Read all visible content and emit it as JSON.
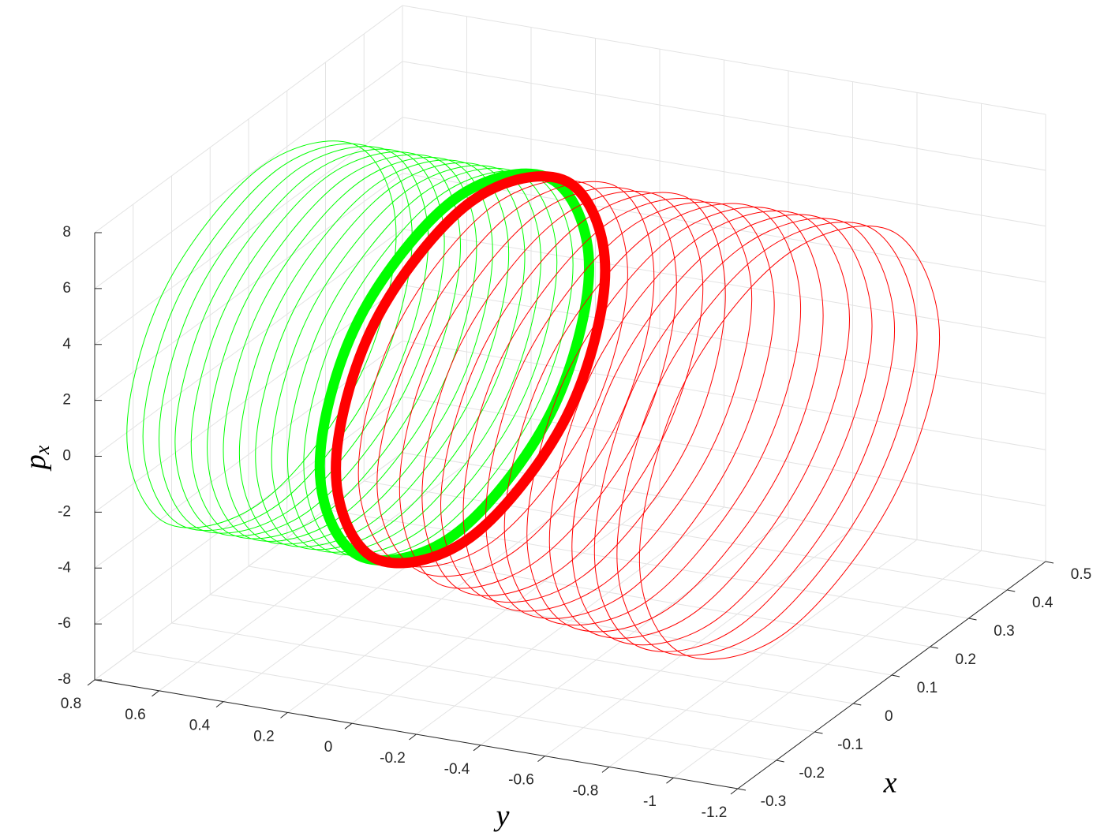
{
  "chart_data": {
    "type": "line3d",
    "xlabel": "x",
    "ylabel": "y",
    "zlabel": "p",
    "zlabel_subscript": "x",
    "xlim": [
      -0.3,
      0.5
    ],
    "xticks": [
      -0.3,
      -0.2,
      -0.1,
      0,
      0.1,
      0.2,
      0.3,
      0.4,
      0.5
    ],
    "ylim": [
      -1.2,
      0.8
    ],
    "ydir": "reverse",
    "yticks": [
      0.8,
      0.6,
      0.4,
      0.2,
      0,
      -0.2,
      -0.4,
      -0.6,
      -0.8,
      -1,
      -1.2
    ],
    "zlim": [
      -8,
      8
    ],
    "zticks": [
      -8,
      -6,
      -4,
      -2,
      0,
      2,
      4,
      6,
      8
    ],
    "grid": true,
    "series": [
      {
        "color": "#00ff00",
        "loops": [
          {
            "y": 0.7,
            "x": [
              0.4,
              0.3,
              0.05,
              -0.2,
              -0.3,
              -0.2,
              0.05,
              0.3
            ],
            "z": [
              1,
              5.2,
              7,
              5.2,
              1,
              -3.2,
              -5,
              -3.2
            ]
          },
          {
            "y": 0.65,
            "x": [
              0.4,
              0.3,
              0.05,
              -0.2,
              -0.3,
              -0.2,
              0.05,
              0.3
            ],
            "z": [
              1,
              5.2,
              7,
              5.2,
              1,
              -3.2,
              -5,
              -3.2
            ]
          },
          {
            "y": 0.6,
            "x": [
              0.4,
              0.3,
              0.05,
              -0.2,
              -0.3,
              -0.2,
              0.05,
              0.3
            ],
            "z": [
              1,
              5.2,
              7,
              5.2,
              1,
              -3.2,
              -5,
              -3.2
            ]
          },
          {
            "y": 0.55,
            "x": [
              0.4,
              0.3,
              0.05,
              -0.2,
              -0.3,
              -0.2,
              0.05,
              0.3
            ],
            "z": [
              1,
              5.2,
              7,
              5.2,
              1,
              -3.2,
              -5,
              -3.2
            ]
          },
          {
            "y": 0.5,
            "x": [
              0.4,
              0.3,
              0.05,
              -0.2,
              -0.3,
              -0.2,
              0.05,
              0.3
            ],
            "z": [
              1,
              5.2,
              7,
              5.2,
              1,
              -3.2,
              -5,
              -3.2
            ]
          },
          {
            "y": 0.45,
            "x": [
              0.4,
              0.3,
              0.05,
              -0.2,
              -0.3,
              -0.2,
              0.05,
              0.3
            ],
            "z": [
              1,
              5.2,
              7,
              5.2,
              1,
              -3.2,
              -5,
              -3.2
            ]
          },
          {
            "y": 0.4,
            "x": [
              0.4,
              0.3,
              0.05,
              -0.2,
              -0.3,
              -0.2,
              0.05,
              0.3
            ],
            "z": [
              1,
              5.2,
              7,
              5.2,
              1,
              -3.2,
              -5,
              -3.2
            ]
          },
          {
            "y": 0.35,
            "x": [
              0.4,
              0.3,
              0.05,
              -0.2,
              -0.3,
              -0.2,
              0.05,
              0.3
            ],
            "z": [
              1,
              5.2,
              7,
              5.2,
              1,
              -3.2,
              -5,
              -3.2
            ]
          },
          {
            "y": 0.3,
            "x": [
              0.4,
              0.3,
              0.05,
              -0.2,
              -0.3,
              -0.2,
              0.05,
              0.3
            ],
            "z": [
              1,
              5.2,
              7,
              5.2,
              1,
              -3.2,
              -5,
              -3.2
            ]
          },
          {
            "y": 0.25,
            "x": [
              0.4,
              0.3,
              0.05,
              -0.2,
              -0.3,
              -0.2,
              0.05,
              0.3
            ],
            "z": [
              1,
              5.2,
              7,
              5.2,
              1,
              -3.2,
              -5,
              -3.2
            ]
          },
          {
            "y": 0.2,
            "x": [
              0.4,
              0.3,
              0.05,
              -0.2,
              -0.3,
              -0.2,
              0.05,
              0.3
            ],
            "z": [
              1,
              5.2,
              7,
              5.2,
              1,
              -3.2,
              -5,
              -3.2
            ]
          },
          {
            "y": 0.15,
            "x": [
              0.4,
              0.3,
              0.05,
              -0.2,
              -0.3,
              -0.2,
              0.05,
              0.3
            ],
            "z": [
              1,
              5.2,
              7,
              5.2,
              1,
              -3.2,
              -5,
              -3.2
            ]
          },
          {
            "y": 0.1,
            "x": [
              0.4,
              0.3,
              0.05,
              -0.2,
              -0.3,
              -0.2,
              0.05,
              0.3
            ],
            "z": [
              1,
              5.2,
              7,
              5.2,
              1,
              -3.2,
              -5,
              -3.2
            ]
          }
        ]
      },
      {
        "color": "#ff0000",
        "loops": [
          {
            "y": 0.05,
            "x": [
              0.4,
              0.3,
              0.05,
              -0.2,
              -0.3,
              -0.2,
              0.05,
              0.3
            ],
            "z": [
              1,
              5.2,
              7,
              5.2,
              1,
              -3.2,
              -5,
              -3.2
            ]
          },
          {
            "y": -0.02,
            "x": [
              0.4,
              0.3,
              0.05,
              -0.2,
              -0.3,
              -0.2,
              0.05,
              0.3
            ],
            "z": [
              1,
              5.2,
              7,
              5.2,
              1,
              -3.2,
              -5,
              -3.2
            ]
          },
          {
            "y": -0.09,
            "x": [
              0.41,
              0.31,
              0.05,
              -0.2,
              -0.31,
              -0.2,
              0.05,
              0.31
            ],
            "z": [
              0.9,
              5.2,
              7,
              5.2,
              0.9,
              -3.4,
              -5.2,
              -3.4
            ]
          },
          {
            "y": -0.16,
            "x": [
              0.41,
              0.31,
              0.05,
              -0.21,
              -0.31,
              -0.21,
              0.05,
              0.31
            ],
            "z": [
              0.8,
              5.1,
              7,
              5.1,
              0.8,
              -3.6,
              -5.4,
              -3.6
            ]
          },
          {
            "y": -0.23,
            "x": [
              0.42,
              0.31,
              0.05,
              -0.21,
              -0.31,
              -0.21,
              0.05,
              0.31
            ],
            "z": [
              0.7,
              5.1,
              7,
              5.1,
              0.7,
              -3.7,
              -5.6,
              -3.7
            ]
          },
          {
            "y": -0.3,
            "x": [
              0.42,
              0.32,
              0.05,
              -0.21,
              -0.32,
              -0.21,
              0.05,
              0.32
            ],
            "z": [
              0.6,
              5.1,
              7,
              5.1,
              0.6,
              -3.8,
              -5.7,
              -3.8
            ]
          },
          {
            "y": -0.37,
            "x": [
              0.43,
              0.32,
              0.05,
              -0.22,
              -0.32,
              -0.22,
              0.05,
              0.32
            ],
            "z": [
              0.5,
              5,
              7,
              5,
              0.5,
              -3.9,
              -5.8,
              -3.9
            ]
          },
          {
            "y": -0.44,
            "x": [
              0.43,
              0.32,
              0.05,
              -0.22,
              -0.32,
              -0.22,
              0.05,
              0.32
            ],
            "z": [
              0.4,
              5,
              7,
              5,
              0.4,
              -4,
              -6,
              -4
            ]
          },
          {
            "y": -0.51,
            "x": [
              0.44,
              0.33,
              0.05,
              -0.22,
              -0.33,
              -0.22,
              0.05,
              0.33
            ],
            "z": [
              0.3,
              5,
              7,
              5,
              0.3,
              -4.1,
              -6.1,
              -4.1
            ]
          },
          {
            "y": -0.58,
            "x": [
              0.44,
              0.33,
              0.05,
              -0.22,
              -0.33,
              -0.22,
              0.05,
              0.33
            ],
            "z": [
              0.2,
              5,
              7,
              5,
              0.2,
              -4.2,
              -6.2,
              -4.2
            ]
          },
          {
            "y": -0.65,
            "x": [
              0.45,
              0.33,
              0.05,
              -0.22,
              -0.33,
              -0.22,
              0.05,
              0.33
            ],
            "z": [
              0.1,
              5,
              7,
              5,
              0.1,
              -4.3,
              -6.3,
              -4.3
            ]
          },
          {
            "y": -0.72,
            "x": [
              0.45,
              0.33,
              0.05,
              -0.22,
              -0.33,
              -0.22,
              0.05,
              0.33
            ],
            "z": [
              0,
              5,
              7,
              5,
              0,
              -4.4,
              -6.4,
              -4.4
            ]
          },
          {
            "y": -0.79,
            "x": [
              0.45,
              0.33,
              0.05,
              -0.22,
              -0.33,
              -0.22,
              0.05,
              0.33
            ],
            "z": [
              0,
              5,
              7,
              5,
              0,
              -4.5,
              -6.5,
              -4.5
            ]
          },
          {
            "y": -0.86,
            "x": [
              0.45,
              0.33,
              0.05,
              -0.22,
              -0.33,
              -0.22,
              0.05,
              0.33
            ],
            "z": [
              0,
              5,
              7,
              5,
              0,
              -4.5,
              -6.5,
              -4.5
            ]
          },
          {
            "y": -0.93,
            "x": [
              0.45,
              0.33,
              0.05,
              -0.22,
              -0.33,
              -0.22,
              0.05,
              0.33
            ],
            "z": [
              0,
              5,
              7,
              5,
              0,
              -4.5,
              -6.5,
              -4.5
            ]
          }
        ]
      }
    ]
  }
}
